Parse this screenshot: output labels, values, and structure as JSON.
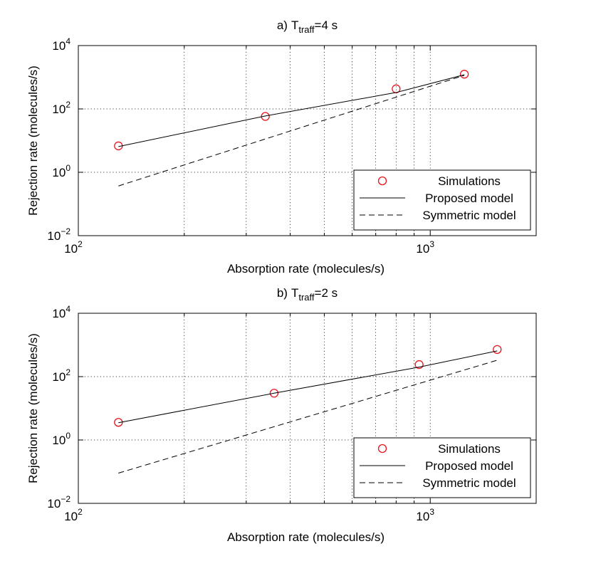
{
  "chart_data": [
    {
      "type": "line",
      "panel_label": "a)",
      "title_main": "T",
      "title_sub": "traff",
      "title_rest": "=4 s",
      "xlabel": "Absorption rate (molecules/s)",
      "ylabel": "Rejection rate (molecules/s)",
      "xscale": "log",
      "yscale": "log",
      "xlim": [
        100,
        2000
      ],
      "ylim": [
        0.01,
        10000
      ],
      "grid": true,
      "x_ticks": [
        {
          "base": "10",
          "exp": "2",
          "value": 100
        },
        {
          "base": "10",
          "exp": "3",
          "value": 1000
        }
      ],
      "y_ticks": [
        {
          "base": "10",
          "exp": "−2",
          "value": 0.01
        },
        {
          "base": "10",
          "exp": "0",
          "value": 1
        },
        {
          "base": "10",
          "exp": "2",
          "value": 100
        },
        {
          "base": "10",
          "exp": "4",
          "value": 10000
        }
      ],
      "legend_position": "bottom-right",
      "series": [
        {
          "name": "Simulations",
          "style": "markers",
          "color": "#e8141c",
          "x": [
            130,
            340,
            800,
            1250
          ],
          "y": [
            6.8,
            58,
            430,
            1250
          ]
        },
        {
          "name": "Proposed model",
          "style": "solid",
          "color": "#000000",
          "x": [
            130,
            340,
            800,
            1250
          ],
          "y": [
            6.5,
            60,
            330,
            1200
          ]
        },
        {
          "name": "Symmetric model",
          "style": "dashed",
          "color": "#000000",
          "x": [
            130,
            1250
          ],
          "y": [
            0.37,
            1150
          ]
        }
      ]
    },
    {
      "type": "line",
      "panel_label": "b)",
      "title_main": "T",
      "title_sub": "traff",
      "title_rest": "=2 s",
      "xlabel": "Absorption rate (molecules/s)",
      "ylabel": "Rejection rate (molecules/s)",
      "xscale": "log",
      "yscale": "log",
      "xlim": [
        100,
        2000
      ],
      "ylim": [
        0.01,
        10000
      ],
      "grid": true,
      "x_ticks": [
        {
          "base": "10",
          "exp": "2",
          "value": 100
        },
        {
          "base": "10",
          "exp": "3",
          "value": 1000
        }
      ],
      "y_ticks": [
        {
          "base": "10",
          "exp": "−2",
          "value": 0.01
        },
        {
          "base": "10",
          "exp": "0",
          "value": 1
        },
        {
          "base": "10",
          "exp": "2",
          "value": 100
        },
        {
          "base": "10",
          "exp": "4",
          "value": 10000
        }
      ],
      "legend_position": "bottom-right",
      "series": [
        {
          "name": "Simulations",
          "style": "markers",
          "color": "#e8141c",
          "x": [
            130,
            360,
            930,
            1550
          ],
          "y": [
            3.6,
            30,
            240,
            720
          ]
        },
        {
          "name": "Proposed model",
          "style": "solid",
          "color": "#000000",
          "x": [
            130,
            360,
            930,
            1550
          ],
          "y": [
            3.5,
            30,
            200,
            650
          ]
        },
        {
          "name": "Symmetric model",
          "style": "dashed",
          "color": "#000000",
          "x": [
            130,
            1550
          ],
          "y": [
            0.09,
            330
          ]
        }
      ]
    }
  ]
}
